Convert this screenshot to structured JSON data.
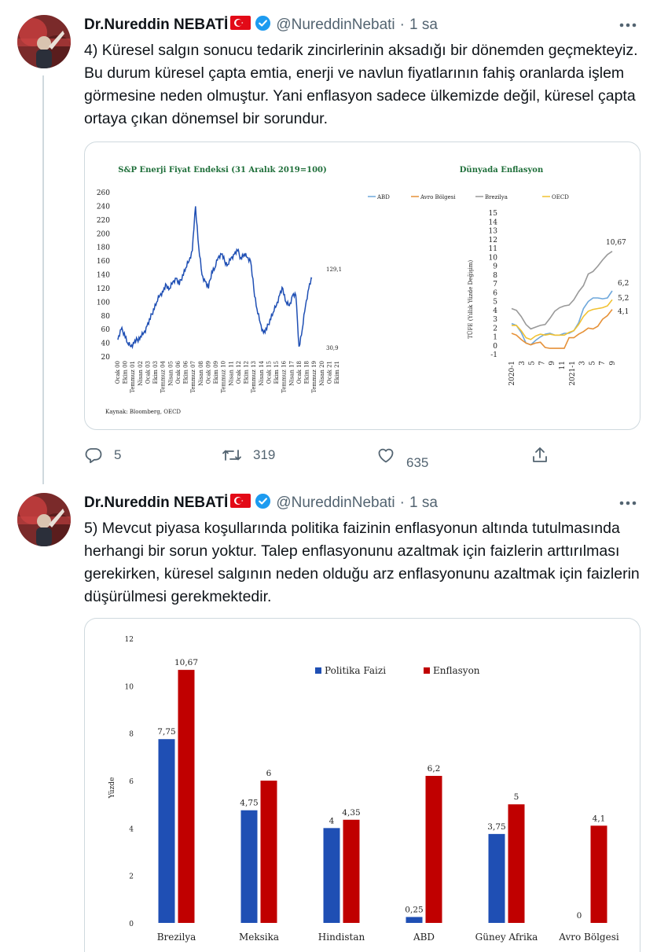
{
  "tweets": [
    {
      "author_name": "Dr.Nureddin NEBATİ",
      "handle": "@NureddinNebati",
      "time": "1 sa",
      "text": "4) Küresel salgın sonucu tedarik zincirlerinin aksadığı bir dönemden geçmekteyiz. Bu durum küresel çapta emtia, enerji ve navlun fiyatlarının fahiş oranlarda işlem görmesine neden olmuştur. Yani enflasyon sadece ülkemizde değil, küresel çapta ortaya çıkan dönemsel bir sorundur.",
      "reply_count": "5",
      "retweet_count": "319",
      "like_count": "635"
    },
    {
      "author_name": "Dr.Nureddin NEBATİ",
      "handle": "@NureddinNebati",
      "time": "1 sa",
      "text": "5) Mevcut piyasa koşullarında politika faizinin enflasyonun altında tutulmasında herhangi bir sorun yoktur. Talep enflasyonunu azaltmak için faizlerin arttırılması gerekirken, küresel salgının neden olduğu arz enflasyonunu azaltmak için faizlerin düşürülmesi gerekmektedir."
    }
  ],
  "icons": {
    "verified": "verified-badge-icon",
    "flag": "turkey-flag-icon",
    "more": "more-icon",
    "reply": "reply-icon",
    "retweet": "retweet-icon",
    "like": "like-icon",
    "share": "share-icon"
  },
  "colors": {
    "verified": "#1d9bf0",
    "flag": "#e30a17",
    "green_title": "#1f6f3a",
    "line_blue": "#1f4fb4",
    "policy_blue": "#1f4fb4",
    "inflation_red": "#c00000"
  },
  "chart_data": [
    {
      "type": "line",
      "title": "S&P Enerji Fiyat Endeksi (31 Aralık 2019=100)",
      "y_ticks": [
        "260",
        "240",
        "220",
        "200",
        "180",
        "160",
        "140",
        "120",
        "100",
        "80",
        "60",
        "40",
        "20"
      ],
      "ylim": [
        20,
        260
      ],
      "x_ticks": [
        "Ocak 00",
        "Ekim 00",
        "Temmuz 01",
        "Nisan 02",
        "Ocak 03",
        "Ekim 03",
        "Temmuz 04",
        "Nisan 05",
        "Ocak 06",
        "Ekim 06",
        "Temmuz 07",
        "Nisan 08",
        "Ocak 09",
        "Ekim 09",
        "Temmuz 10",
        "Nisan 11",
        "Ocak 12",
        "Ekim 12",
        "Temmuz 13",
        "Nisan 14",
        "Ocak 15",
        "Ekim 15",
        "Temmuz 16",
        "Nisan 17",
        "Ocak 18",
        "Ekim 18",
        "Temmuz 19",
        "Nisan 20",
        "Ocak 21",
        "Ekim 21"
      ],
      "annotations": [
        "129,1",
        "30,9"
      ],
      "source": "Kaynak: Bloomberg, OECD",
      "series": [
        {
          "values": [
            45,
            60,
            55,
            40,
            35,
            40,
            45,
            50,
            55,
            65,
            75,
            90,
            100,
            110,
            115,
            125,
            120,
            130,
            135,
            125,
            140,
            150,
            160,
            175,
            240,
            180,
            140,
            130,
            120,
            145,
            150,
            165,
            170,
            160,
            155,
            165,
            170,
            175,
            165,
            170,
            165,
            160,
            120,
            90,
            70,
            55,
            60,
            75,
            85,
            95,
            110,
            120,
            100,
            95,
            110,
            110,
            35,
            60,
            95,
            120,
            135
          ]
        }
      ]
    },
    {
      "type": "line",
      "title": "Dünyada Enflasyon",
      "ylabel": "TÜFE (Yıllık Yüzde Değişim)",
      "y_ticks": [
        "15",
        "14",
        "13",
        "12",
        "11",
        "10",
        "9",
        "8",
        "7",
        "6",
        "5",
        "4",
        "3",
        "2",
        "1",
        "0",
        "-1"
      ],
      "ylim": [
        -1,
        15
      ],
      "x_ticks": [
        "2020-1",
        "3",
        "5",
        "7",
        "9",
        "11",
        "2021-1",
        "3",
        "5",
        "7",
        "9"
      ],
      "end_labels": [
        "10,67",
        "6,2",
        "5,2",
        "4,1"
      ],
      "series": [
        {
          "name": "ABD",
          "color": "#6fa8dc",
          "values": [
            2.5,
            2.3,
            1.5,
            0.3,
            0.1,
            0.6,
            1.0,
            1.3,
            1.4,
            1.2,
            1.2,
            1.4,
            1.4,
            1.7,
            2.6,
            4.2,
            5.0,
            5.4,
            5.4,
            5.3,
            5.4,
            6.2
          ]
        },
        {
          "name": "Avro Bölgesi",
          "color": "#e69138",
          "values": [
            1.4,
            1.2,
            0.7,
            0.3,
            0.1,
            0.3,
            0.4,
            -0.2,
            -0.3,
            -0.3,
            -0.3,
            -0.3,
            0.9,
            0.9,
            1.3,
            1.6,
            2.0,
            1.9,
            2.2,
            3.0,
            3.4,
            4.1
          ]
        },
        {
          "name": "Brezilya",
          "color": "#999999",
          "values": [
            4.2,
            4.0,
            3.3,
            2.4,
            1.9,
            2.1,
            2.3,
            2.4,
            3.1,
            3.9,
            4.3,
            4.5,
            4.6,
            5.2,
            6.1,
            6.8,
            8.1,
            8.4,
            9.0,
            9.7,
            10.3,
            10.67
          ]
        },
        {
          "name": "OECD",
          "color": "#f1c232",
          "values": [
            2.3,
            2.3,
            1.7,
            0.9,
            0.7,
            1.1,
            1.3,
            1.2,
            1.3,
            1.2,
            1.2,
            1.2,
            1.5,
            1.7,
            2.4,
            3.3,
            3.9,
            4.1,
            4.2,
            4.3,
            4.5,
            5.2
          ]
        }
      ]
    },
    {
      "type": "bar",
      "ylabel": "Yüzde",
      "ylim": [
        0,
        12
      ],
      "y_ticks": [
        "0",
        "2",
        "4",
        "6",
        "8",
        "10",
        "12"
      ],
      "categories": [
        "Brezilya",
        "Meksika",
        "Hindistan",
        "ABD",
        "Güney Afrika",
        "Avro Bölgesi"
      ],
      "series": [
        {
          "name": "Politika Faizi",
          "color": "#1f4fb4",
          "values": [
            7.75,
            4.75,
            4,
            0.25,
            3.75,
            0
          ],
          "labels": [
            "7,75",
            "4,75",
            "4",
            "0,25",
            "3,75",
            "0"
          ]
        },
        {
          "name": "Enflasyon",
          "color": "#c00000",
          "values": [
            10.67,
            6,
            4.35,
            6.2,
            5,
            4.1
          ],
          "labels": [
            "10,67",
            "6",
            "4,35",
            "6,2",
            "5",
            "4,1"
          ]
        }
      ]
    }
  ]
}
